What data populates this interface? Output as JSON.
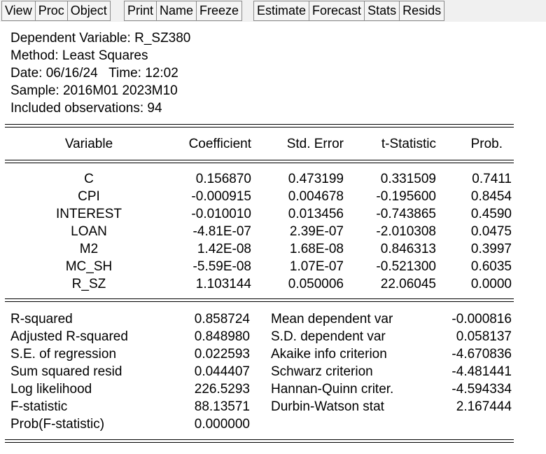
{
  "toolbar": {
    "groups": [
      [
        "View",
        "Proc",
        "Object"
      ],
      [
        "Print",
        "Name",
        "Freeze"
      ],
      [
        "Estimate",
        "Forecast",
        "Stats",
        "Resids"
      ]
    ]
  },
  "header": {
    "dependent": "Dependent Variable: R_SZ380",
    "method": "Method: Least Squares",
    "date": "Date: 06/16/24   Time: 12:02",
    "sample": "Sample: 2016M01 2023M10",
    "obs": "Included observations: 94"
  },
  "coef_table": {
    "columns": [
      "Variable",
      "Coefficient",
      "Std. Error",
      "t-Statistic",
      "Prob."
    ],
    "rows": [
      [
        "C",
        "0.156870",
        "0.473199",
        "0.331509",
        "0.7411"
      ],
      [
        "CPI",
        "-0.000915",
        "0.004678",
        "-0.195600",
        "0.8454"
      ],
      [
        "INTEREST",
        "-0.010010",
        "0.013456",
        "-0.743865",
        "0.4590"
      ],
      [
        "LOAN",
        "-4.81E-07",
        "2.39E-07",
        "-2.010308",
        "0.0475"
      ],
      [
        "M2",
        "1.42E-08",
        "1.68E-08",
        "0.846313",
        "0.3997"
      ],
      [
        "MC_SH",
        "-5.59E-08",
        "1.07E-07",
        "-0.521300",
        "0.6035"
      ],
      [
        "R_SZ",
        "1.103144",
        "0.050006",
        "22.06045",
        "0.0000"
      ]
    ]
  },
  "stats": {
    "left": [
      [
        "R-squared",
        "0.858724"
      ],
      [
        "Adjusted R-squared",
        "0.848980"
      ],
      [
        "S.E. of regression",
        "0.022593"
      ],
      [
        "Sum squared resid",
        "0.044407"
      ],
      [
        "Log likelihood",
        "226.5293"
      ],
      [
        "F-statistic",
        "88.13571"
      ],
      [
        "Prob(F-statistic)",
        "0.000000"
      ]
    ],
    "right": [
      [
        "Mean dependent var",
        "-0.000816"
      ],
      [
        "S.D. dependent var",
        "0.058137"
      ],
      [
        "Akaike info criterion",
        "-4.670836"
      ],
      [
        "Schwarz criterion",
        "-4.481441"
      ],
      [
        "Hannan-Quinn criter.",
        "-4.594334"
      ],
      [
        "Durbin-Watson stat",
        "2.167444"
      ]
    ]
  }
}
